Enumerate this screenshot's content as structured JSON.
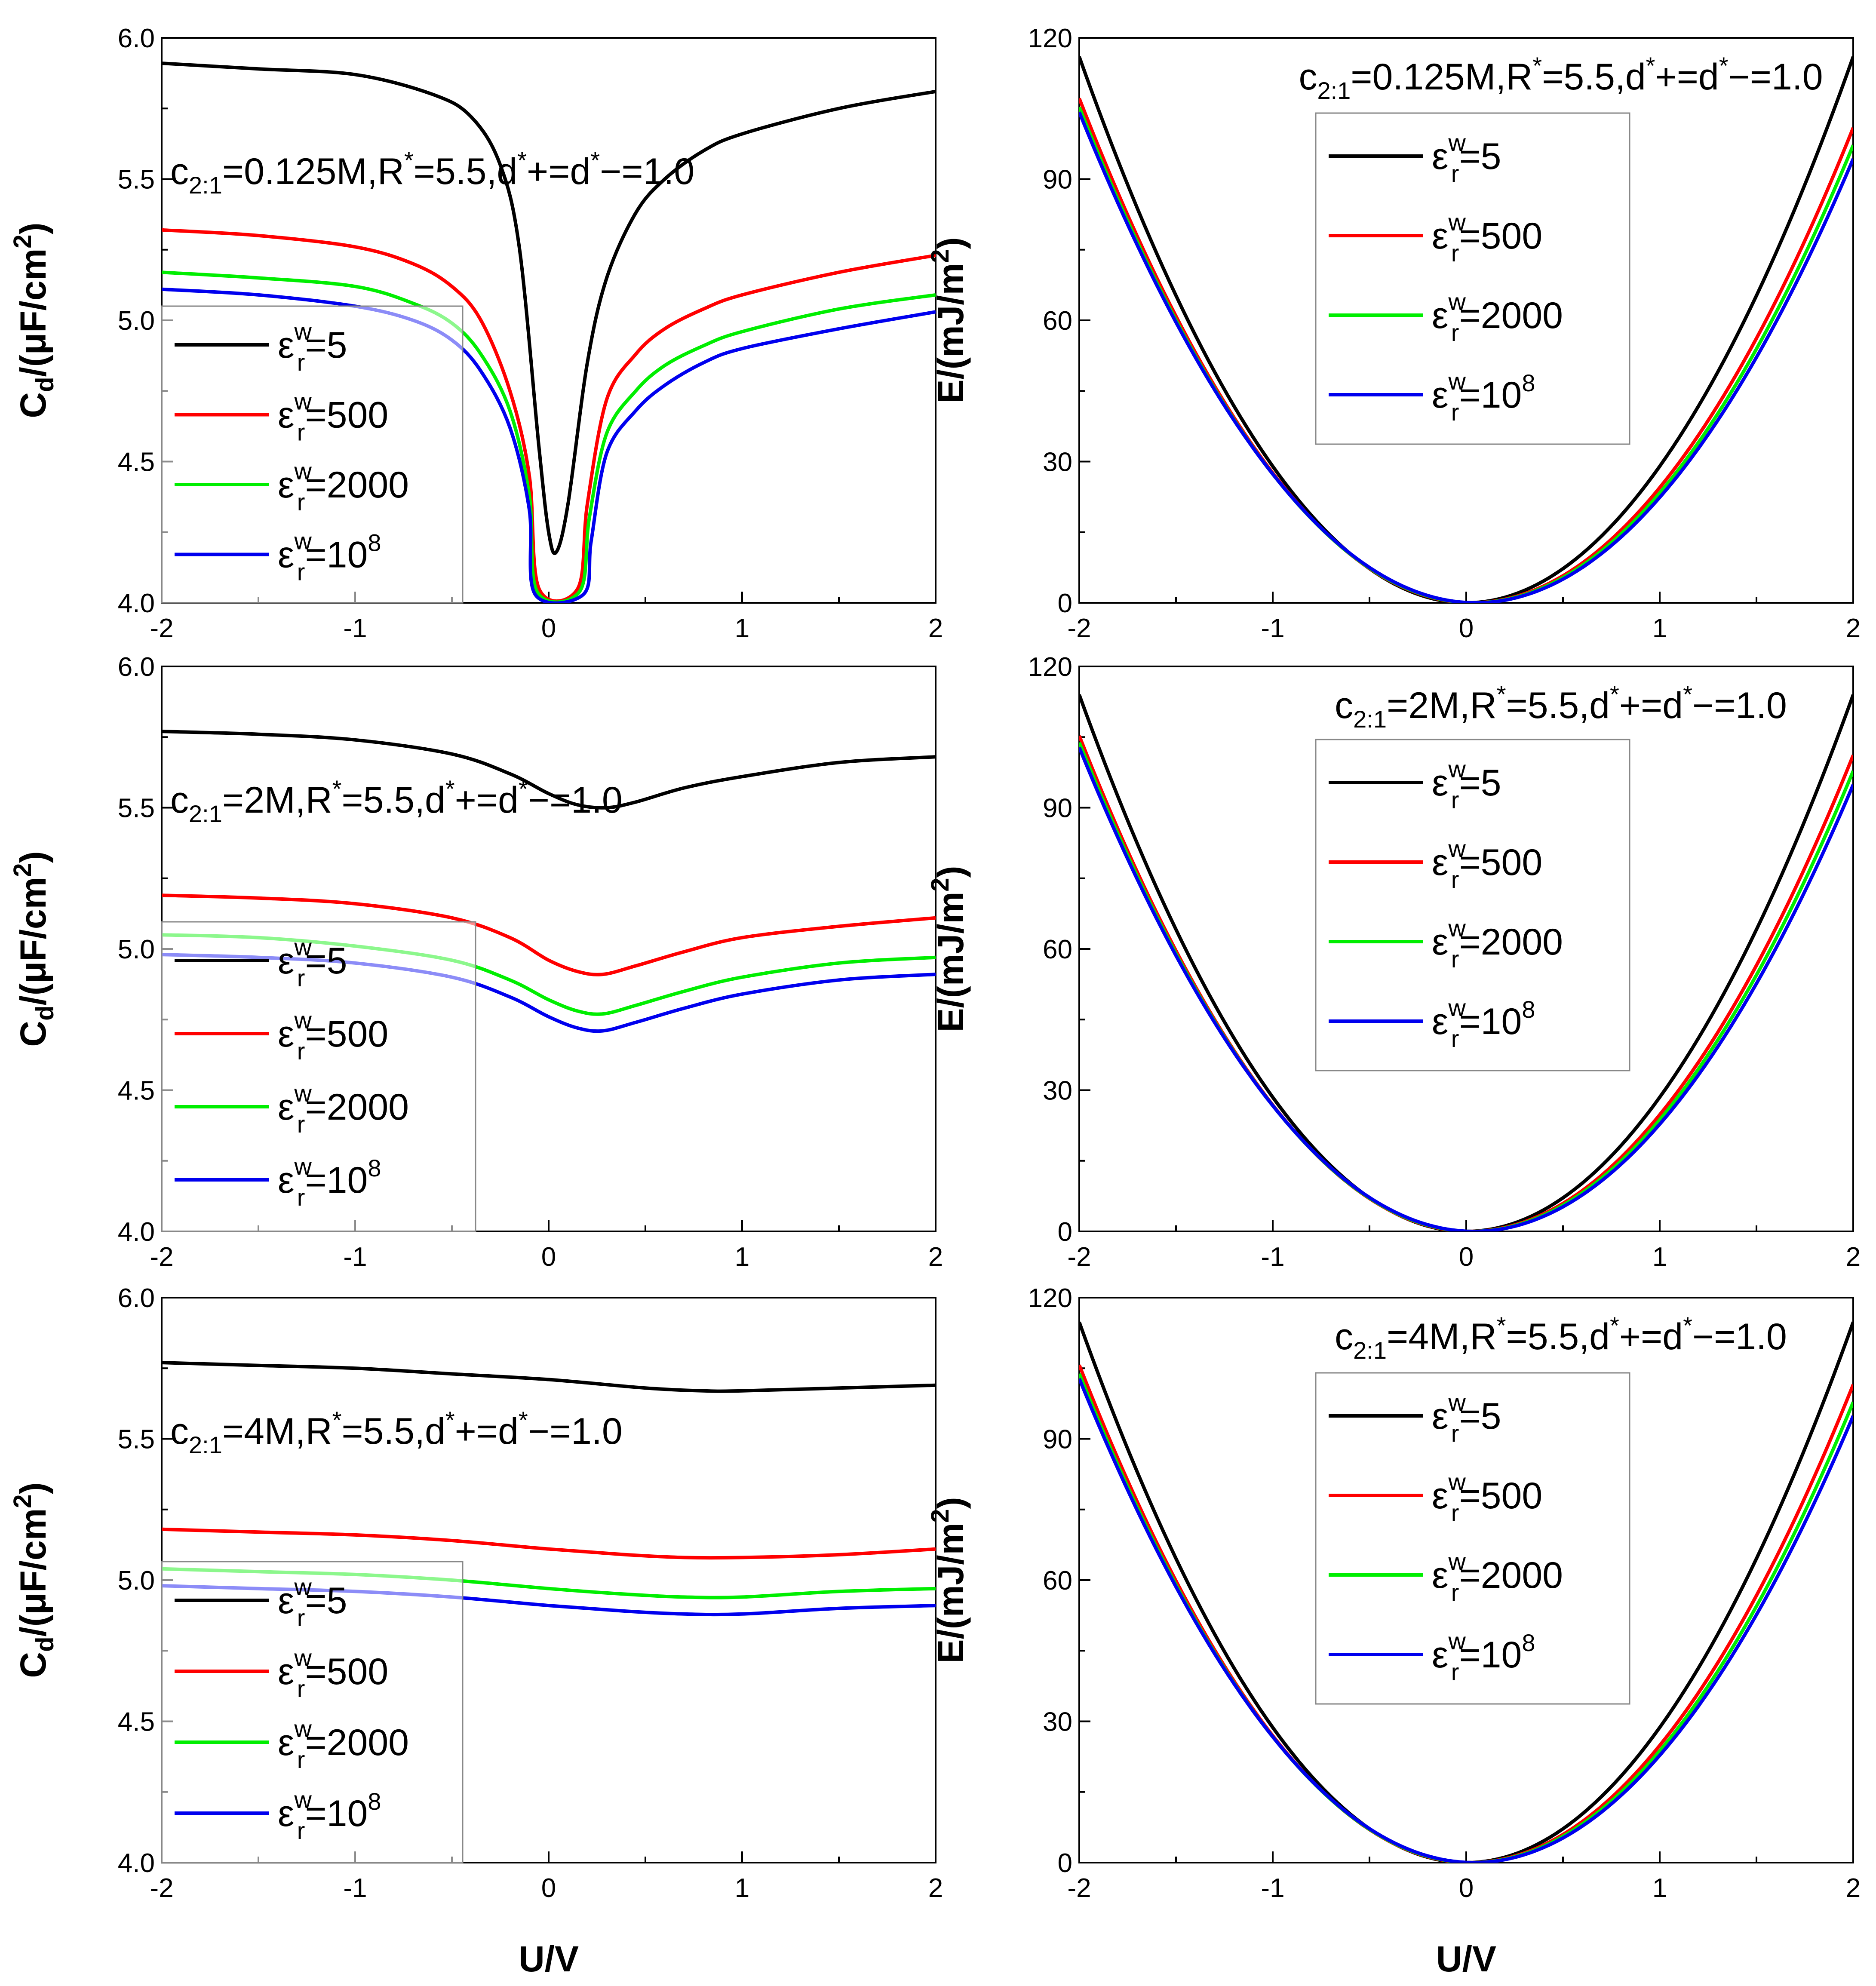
{
  "figure": {
    "xlabel_bottom_left": "U/V",
    "xlabel_bottom_right": "U/V"
  },
  "chart_data": [
    {
      "id": "cd-0125M",
      "type": "line",
      "title": "",
      "annotation": "c2:1=0.125M,R*=5.5,d*+=d*−=1.0",
      "annotation_parts": {
        "c": "c",
        "c_sub": "2:1",
        "pre_r": "=0.125M,R",
        "star": "*",
        "mid": "=5.5,d",
        "plus": "+=d",
        "end": "−=1.0"
      },
      "xlabel": "",
      "ylabel": "Cd/(μF/cm2)",
      "ylabel_parts": {
        "main": "C",
        "sub": "d",
        "mid": "/(μF/cm",
        "sup": "2",
        "end": ")"
      },
      "xlim": [
        -2,
        2
      ],
      "ylim": [
        4.0,
        6.0
      ],
      "xticks": [
        "-2",
        "-1",
        "0",
        "1",
        "2"
      ],
      "yticks": [
        "4.0",
        "4.5",
        "5.0",
        "5.5",
        "6.0"
      ],
      "legend_position": "lower-left",
      "series": [
        {
          "name": "εwr=5",
          "label_value": "=5",
          "color": "#000000",
          "x": [
            -2,
            -1.5,
            -1,
            -0.6,
            -0.4,
            -0.25,
            -0.15,
            -0.05,
            0,
            0.04,
            0.1,
            0.2,
            0.3,
            0.45,
            0.6,
            0.8,
            1,
            1.5,
            2
          ],
          "y": [
            5.91,
            5.89,
            5.87,
            5.8,
            5.72,
            5.55,
            5.25,
            4.55,
            4.25,
            4.18,
            4.35,
            4.85,
            5.15,
            5.38,
            5.5,
            5.6,
            5.66,
            5.75,
            5.81
          ]
        },
        {
          "name": "εwr=500",
          "label_value": "=500",
          "color": "#ff0000",
          "x": [
            -2,
            -1.5,
            -1,
            -0.7,
            -0.5,
            -0.35,
            -0.2,
            -0.1,
            -0.05,
            0.15,
            0.2,
            0.3,
            0.45,
            0.6,
            0.8,
            1,
            1.5,
            2
          ],
          "y": [
            5.32,
            5.3,
            5.26,
            5.2,
            5.12,
            5.0,
            4.75,
            4.45,
            4.05,
            4.05,
            4.35,
            4.72,
            4.88,
            4.97,
            5.04,
            5.09,
            5.17,
            5.23
          ]
        },
        {
          "name": "εwr=2000",
          "label_value": "=2000",
          "color": "#00ee00",
          "x": [
            -2,
            -1.5,
            -1,
            -0.7,
            -0.5,
            -0.35,
            -0.2,
            -0.1,
            -0.06,
            0.16,
            0.21,
            0.3,
            0.45,
            0.6,
            0.8,
            1,
            1.5,
            2
          ],
          "y": [
            5.17,
            5.15,
            5.12,
            5.06,
            4.99,
            4.88,
            4.68,
            4.38,
            4.04,
            4.04,
            4.3,
            4.6,
            4.75,
            4.84,
            4.91,
            4.96,
            5.04,
            5.09
          ]
        },
        {
          "name": "εwr=108",
          "label_value": "=10",
          "label_sup": "8",
          "color": "#0000ee",
          "x": [
            -2,
            -1.5,
            -1,
            -0.7,
            -0.5,
            -0.35,
            -0.2,
            -0.1,
            -0.07,
            0.18,
            0.22,
            0.3,
            0.45,
            0.6,
            0.8,
            1,
            1.5,
            2
          ],
          "y": [
            5.11,
            5.09,
            5.05,
            5.0,
            4.93,
            4.82,
            4.62,
            4.33,
            4.03,
            4.03,
            4.22,
            4.53,
            4.68,
            4.77,
            4.85,
            4.9,
            4.97,
            5.03
          ]
        }
      ]
    },
    {
      "id": "e-0125M",
      "type": "line",
      "title": "",
      "annotation": "c2:1=0.125M,R*=5.5,d*+=d*−=1.0",
      "annotation_parts": {
        "c": "c",
        "c_sub": "2:1",
        "pre_r": "=0.125M,R",
        "star": "*",
        "mid": "=5.5,d",
        "plus": "+=d",
        "end": "−=1.0"
      },
      "xlabel": "",
      "ylabel": "E/(mJ/m2)",
      "ylabel_parts": {
        "main": "E/(mJ/m",
        "sup": "2",
        "end": ")"
      },
      "xlim": [
        -2,
        2
      ],
      "ylim": [
        0,
        120
      ],
      "xticks": [
        "-2",
        "-1",
        "0",
        "1",
        "2"
      ],
      "yticks": [
        "0",
        "30",
        "60",
        "90",
        "120"
      ],
      "legend_position": "upper-center",
      "series": [
        {
          "name": "εwr=5",
          "label_value": "=5",
          "color": "#000000",
          "curve": "parabola",
          "a": 29.0,
          "shift": 0.0
        },
        {
          "name": "εwr=500",
          "label_value": "=500",
          "color": "#ff0000",
          "curve": "parabola",
          "a": 26.0,
          "shift": 0.03
        },
        {
          "name": "εwr=2000",
          "label_value": "=2000",
          "color": "#00ee00",
          "curve": "parabola",
          "a": 25.3,
          "shift": 0.04
        },
        {
          "name": "εwr=108",
          "label_value": "=10",
          "label_sup": "8",
          "color": "#0000ee",
          "curve": "parabola",
          "a": 24.8,
          "shift": 0.05
        }
      ]
    },
    {
      "id": "cd-2M",
      "type": "line",
      "title": "",
      "annotation": "c2:1=2M,R*=5.5,d*+=d*−=1.0",
      "annotation_parts": {
        "c": "c",
        "c_sub": "2:1",
        "pre_r": "=2M,R",
        "star": "*",
        "mid": "=5.5,d",
        "plus": "+=d",
        "end": "−=1.0"
      },
      "xlabel": "",
      "ylabel": "Cd/(μF/cm2)",
      "ylabel_parts": {
        "main": "C",
        "sub": "d",
        "mid": "/(μF/cm",
        "sup": "2",
        "end": ")"
      },
      "xlim": [
        -2,
        2
      ],
      "ylim": [
        4.0,
        6.0
      ],
      "xticks": [
        "-2",
        "-1",
        "0",
        "1",
        "2"
      ],
      "yticks": [
        "4.0",
        "4.5",
        "5.0",
        "5.5",
        "6.0"
      ],
      "legend_position": "lower-left",
      "series": [
        {
          "name": "εwr=5",
          "label_value": "=5",
          "color": "#000000",
          "x": [
            -2,
            -1.5,
            -1,
            -0.5,
            -0.2,
            0,
            0.15,
            0.3,
            0.45,
            0.7,
            1,
            1.5,
            2
          ],
          "y": [
            5.77,
            5.76,
            5.74,
            5.69,
            5.62,
            5.55,
            5.51,
            5.5,
            5.52,
            5.57,
            5.61,
            5.66,
            5.68
          ]
        },
        {
          "name": "εwr=500",
          "label_value": "=500",
          "color": "#ff0000",
          "x": [
            -2,
            -1.5,
            -1,
            -0.5,
            -0.2,
            0,
            0.15,
            0.28,
            0.45,
            0.7,
            1,
            1.5,
            2
          ],
          "y": [
            5.19,
            5.18,
            5.16,
            5.11,
            5.04,
            4.96,
            4.92,
            4.91,
            4.94,
            4.99,
            5.04,
            5.08,
            5.11
          ]
        },
        {
          "name": "εwr=2000",
          "label_value": "=2000",
          "color": "#00ee00",
          "x": [
            -2,
            -1.5,
            -1,
            -0.5,
            -0.2,
            0,
            0.15,
            0.28,
            0.45,
            0.7,
            1,
            1.5,
            2
          ],
          "y": [
            5.05,
            5.04,
            5.01,
            4.96,
            4.89,
            4.82,
            4.78,
            4.77,
            4.8,
            4.85,
            4.9,
            4.95,
            4.97
          ]
        },
        {
          "name": "εwr=108",
          "label_value": "=10",
          "label_sup": "8",
          "color": "#0000ee",
          "x": [
            -2,
            -1.5,
            -1,
            -0.5,
            -0.2,
            0,
            0.15,
            0.28,
            0.45,
            0.7,
            1,
            1.5,
            2
          ],
          "y": [
            4.98,
            4.97,
            4.95,
            4.9,
            4.83,
            4.76,
            4.72,
            4.71,
            4.74,
            4.79,
            4.84,
            4.89,
            4.91
          ]
        }
      ]
    },
    {
      "id": "e-2M",
      "type": "line",
      "title": "",
      "annotation": "c2:1=2M,R*=5.5,d*+=d*−=1.0",
      "annotation_parts": {
        "c": "c",
        "c_sub": "2:1",
        "pre_r": "=2M,R",
        "star": "*",
        "mid": "=5.5,d",
        "plus": "+=d",
        "end": "−=1.0"
      },
      "xlabel": "",
      "ylabel": "E/(mJ/m2)",
      "ylabel_parts": {
        "main": "E/(mJ/m",
        "sup": "2",
        "end": ")"
      },
      "xlim": [
        -2,
        2
      ],
      "ylim": [
        0,
        120
      ],
      "xticks": [
        "-2",
        "-1",
        "0",
        "1",
        "2"
      ],
      "yticks": [
        "0",
        "30",
        "60",
        "90",
        "120"
      ],
      "legend_position": "upper-center",
      "series": [
        {
          "name": "εwr=5",
          "label_value": "=5",
          "color": "#000000",
          "curve": "parabola",
          "a": 28.5,
          "shift": 0.0
        },
        {
          "name": "εwr=500",
          "label_value": "=500",
          "color": "#ff0000",
          "curve": "parabola",
          "a": 25.8,
          "shift": 0.02
        },
        {
          "name": "εwr=2000",
          "label_value": "=2000",
          "color": "#00ee00",
          "curve": "parabola",
          "a": 25.2,
          "shift": 0.03
        },
        {
          "name": "εwr=108",
          "label_value": "=10",
          "label_sup": "8",
          "color": "#0000ee",
          "curve": "parabola",
          "a": 24.7,
          "shift": 0.04
        }
      ]
    },
    {
      "id": "cd-4M",
      "type": "line",
      "title": "",
      "annotation": "c2:1=4M,R*=5.5,d*+=d*−=1.0",
      "annotation_parts": {
        "c": "c",
        "c_sub": "2:1",
        "pre_r": "=4M,R",
        "star": "*",
        "mid": "=5.5,d",
        "plus": "+=d",
        "end": "−=1.0"
      },
      "xlabel": "U/V",
      "ylabel": "Cd/(μF/cm2)",
      "ylabel_parts": {
        "main": "C",
        "sub": "d",
        "mid": "/(μF/cm",
        "sup": "2",
        "end": ")"
      },
      "xlim": [
        -2,
        2
      ],
      "ylim": [
        4.0,
        6.0
      ],
      "xticks": [
        "-2",
        "-1",
        "0",
        "1",
        "2"
      ],
      "yticks": [
        "4.0",
        "4.5",
        "5.0",
        "5.5",
        "6.0"
      ],
      "legend_position": "lower-left",
      "series": [
        {
          "name": "εwr=5",
          "label_value": "=5",
          "color": "#000000",
          "x": [
            -2,
            -1.5,
            -1,
            -0.5,
            0,
            0.5,
            0.8,
            1,
            1.5,
            2
          ],
          "y": [
            5.77,
            5.76,
            5.75,
            5.73,
            5.71,
            5.68,
            5.67,
            5.67,
            5.68,
            5.69
          ]
        },
        {
          "name": "εwr=500",
          "label_value": "=500",
          "color": "#ff0000",
          "x": [
            -2,
            -1.5,
            -1,
            -0.5,
            0,
            0.4,
            0.7,
            1,
            1.5,
            2
          ],
          "y": [
            5.18,
            5.17,
            5.16,
            5.14,
            5.11,
            5.09,
            5.08,
            5.08,
            5.09,
            5.11
          ]
        },
        {
          "name": "εwr=2000",
          "label_value": "=2000",
          "color": "#00ee00",
          "x": [
            -2,
            -1.5,
            -1,
            -0.5,
            0,
            0.4,
            0.7,
            1,
            1.5,
            2
          ],
          "y": [
            5.04,
            5.03,
            5.02,
            5.0,
            4.97,
            4.95,
            4.94,
            4.94,
            4.96,
            4.97
          ]
        },
        {
          "name": "εwr=108",
          "label_value": "=10",
          "label_sup": "8",
          "color": "#0000ee",
          "x": [
            -2,
            -1.5,
            -1,
            -0.5,
            0,
            0.4,
            0.7,
            1,
            1.5,
            2
          ],
          "y": [
            4.98,
            4.97,
            4.96,
            4.94,
            4.91,
            4.89,
            4.88,
            4.88,
            4.9,
            4.91
          ]
        }
      ]
    },
    {
      "id": "e-4M",
      "type": "line",
      "title": "",
      "annotation": "c2:1=4M,R*=5.5,d*+=d*−=1.0",
      "annotation_parts": {
        "c": "c",
        "c_sub": "2:1",
        "pre_r": "=4M,R",
        "star": "*",
        "mid": "=5.5,d",
        "plus": "+=d",
        "end": "−=1.0"
      },
      "xlabel": "U/V",
      "ylabel": "E/(mJ/m2)",
      "ylabel_parts": {
        "main": "E/(mJ/m",
        "sup": "2",
        "end": ")"
      },
      "xlim": [
        -2,
        2
      ],
      "ylim": [
        0,
        120
      ],
      "xticks": [
        "-2",
        "-1",
        "0",
        "1",
        "2"
      ],
      "yticks": [
        "0",
        "30",
        "60",
        "90",
        "120"
      ],
      "legend_position": "upper-center",
      "series": [
        {
          "name": "εwr=5",
          "label_value": "=5",
          "color": "#000000",
          "curve": "parabola",
          "a": 28.7,
          "shift": 0.0
        },
        {
          "name": "εwr=500",
          "label_value": "=500",
          "color": "#ff0000",
          "curve": "parabola",
          "a": 25.9,
          "shift": 0.02
        },
        {
          "name": "εwr=2000",
          "label_value": "=2000",
          "color": "#00ee00",
          "curve": "parabola",
          "a": 25.2,
          "shift": 0.03
        },
        {
          "name": "εwr=108",
          "label_value": "=10",
          "label_sup": "8",
          "color": "#0000ee",
          "curve": "parabola",
          "a": 24.7,
          "shift": 0.04
        }
      ]
    }
  ]
}
